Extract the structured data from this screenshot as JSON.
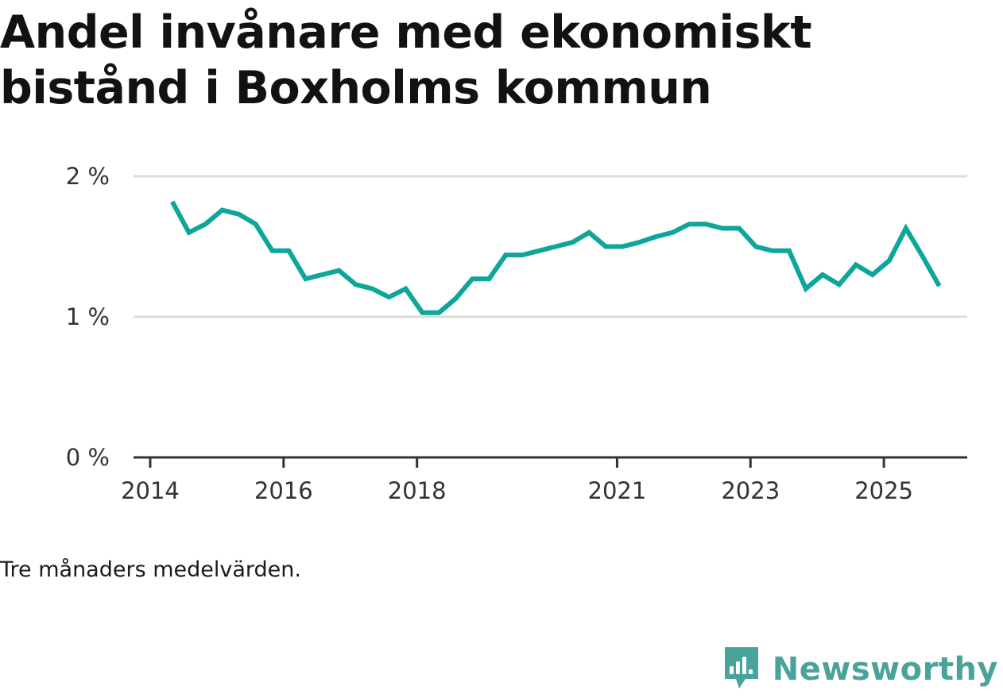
{
  "header": {
    "title": "Andel invånare med ekonomiskt bistånd i Boxholms kommun"
  },
  "footer": {
    "note": "Tre månaders medelvärden.",
    "brand": "Newsworthy",
    "brand_icon": "newsworthy-logo-icon",
    "brand_color": "#4aa39b"
  },
  "chart_data": {
    "type": "line",
    "title": "Andel invånare med ekonomiskt bistånd i Boxholms kommun",
    "xlabel": "",
    "ylabel": "",
    "x_tick_labels": [
      "2014",
      "2016",
      "2018",
      "2021",
      "2023",
      "2025"
    ],
    "x_ticks": [
      2014.0,
      2016.0,
      2018.0,
      2021.0,
      2023.0,
      2025.0
    ],
    "y_tick_labels": [
      "0 %",
      "1 %",
      "2 %"
    ],
    "y_ticks": [
      0,
      1,
      2
    ],
    "xlim": [
      2013.75,
      2026.25
    ],
    "ylim": [
      0,
      2
    ],
    "grid": true,
    "line_color": "#0ea59a",
    "series": [
      {
        "x": [
          2014.33,
          2014.58,
          2014.83,
          2015.08,
          2015.33,
          2015.58,
          2015.83,
          2016.08,
          2016.33,
          2016.58,
          2016.83,
          2017.08,
          2017.33,
          2017.58,
          2017.83,
          2018.08,
          2018.33,
          2018.58,
          2018.83,
          2019.08,
          2019.33,
          2019.58,
          2019.83,
          2020.08,
          2020.33,
          2020.58,
          2020.83,
          2021.08,
          2021.33,
          2021.58,
          2021.83,
          2022.08,
          2022.33,
          2022.58,
          2022.83,
          2023.08,
          2023.33,
          2023.58,
          2023.83,
          2024.08,
          2024.33,
          2024.58,
          2024.83,
          2025.08,
          2025.33,
          2025.58,
          2025.83
        ],
        "values": [
          1.82,
          1.6,
          1.66,
          1.76,
          1.73,
          1.66,
          1.47,
          1.47,
          1.27,
          1.3,
          1.33,
          1.23,
          1.2,
          1.14,
          1.2,
          1.03,
          1.03,
          1.13,
          1.27,
          1.27,
          1.44,
          1.44,
          1.47,
          1.5,
          1.53,
          1.6,
          1.5,
          1.5,
          1.53,
          1.57,
          1.6,
          1.66,
          1.66,
          1.63,
          1.63,
          1.5,
          1.47,
          1.47,
          1.2,
          1.3,
          1.23,
          1.37,
          1.3,
          1.4,
          1.63,
          1.43,
          1.22
        ]
      }
    ]
  }
}
